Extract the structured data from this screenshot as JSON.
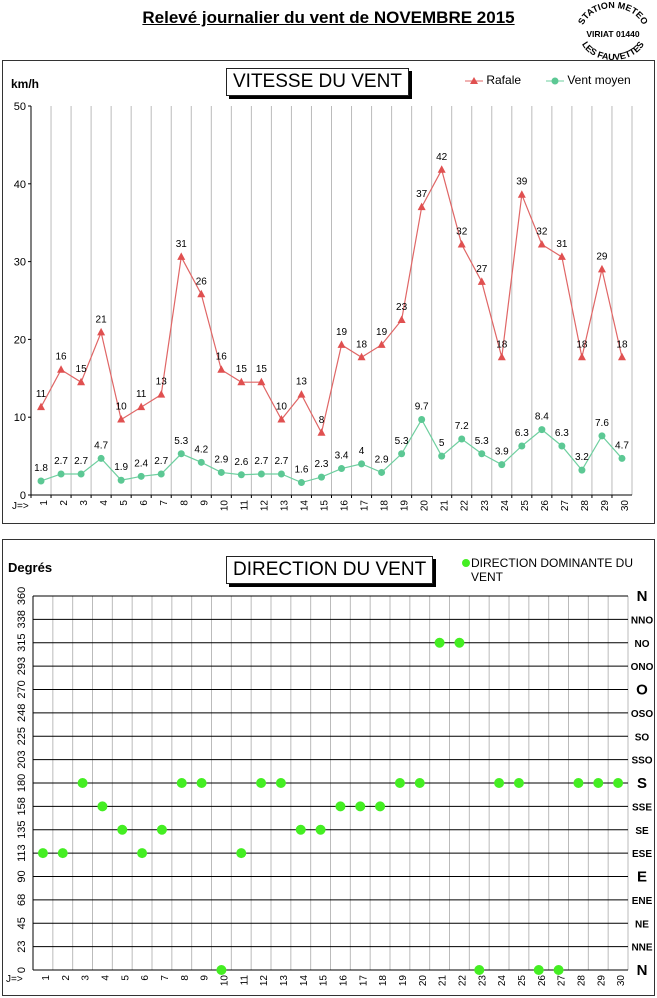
{
  "title": "Relevé journalier du vent de NOVEMBRE 2015",
  "stamp": {
    "line1": "STATION METEO",
    "line2": "VIRIAT 01440",
    "line3": "LES FAUVETTES"
  },
  "colors": {
    "rafale": "#e06666",
    "rafale_marker": "#e05050",
    "moyen": "#6ecf9f",
    "moyen_marker": "#5cc894",
    "direction": "#44ee22",
    "grid": "#000000",
    "vgrid": "#bbbbbb"
  },
  "chart_data": [
    {
      "type": "line",
      "title": "VITESSE DU VENT",
      "ylabel": "km/h",
      "xlabel": "",
      "x_prefix": "J=>",
      "x": [
        1,
        2,
        3,
        4,
        5,
        6,
        7,
        8,
        9,
        10,
        11,
        12,
        13,
        14,
        15,
        16,
        17,
        18,
        19,
        20,
        21,
        22,
        23,
        24,
        25,
        26,
        27,
        28,
        29,
        30
      ],
      "ylim": [
        0,
        50
      ],
      "yticks": [
        0,
        10,
        20,
        30,
        40,
        50
      ],
      "grid": true,
      "legend": "top-right",
      "series": [
        {
          "name": "Rafale",
          "marker": "triangle",
          "values": [
            11.3,
            16.1,
            14.5,
            20.9,
            9.7,
            11.3,
            12.9,
            30.6,
            25.8,
            16.1,
            14.5,
            14.5,
            9.7,
            12.9,
            8.0,
            19.3,
            17.7,
            19.3,
            22.5,
            37.0,
            41.8,
            32.2,
            27.4,
            17.7,
            38.6,
            32.2,
            30.6,
            17.7,
            29.0,
            17.7
          ],
          "labels": [
            "11",
            "16",
            "15",
            "21",
            "10",
            "11",
            "13",
            "31",
            "26",
            "16",
            "15",
            "15",
            "10",
            "13",
            "8",
            "19",
            "18",
            "19",
            "23",
            "37",
            "42",
            "32",
            "27",
            "18",
            "39",
            "32",
            "31",
            "18",
            "29",
            "18"
          ]
        },
        {
          "name": "Vent moyen",
          "marker": "circle",
          "values": [
            1.8,
            2.7,
            2.7,
            4.7,
            1.9,
            2.4,
            2.7,
            5.3,
            4.2,
            2.9,
            2.6,
            2.7,
            2.7,
            1.6,
            2.3,
            3.4,
            4,
            2.9,
            5.3,
            9.7,
            5,
            7.2,
            5.3,
            3.9,
            6.3,
            8.4,
            6.3,
            3.2,
            7.6,
            4.7
          ],
          "labels": [
            "1.8",
            "2.7",
            "2.7",
            "4.7",
            "1.9",
            "2.4",
            "2.7",
            "5.3",
            "4.2",
            "2.9",
            "2.6",
            "2.7",
            "2.7",
            "1.6",
            "2.3",
            "3.4",
            "4",
            "2.9",
            "5.3",
            "9.7",
            "5",
            "7.2",
            "5.3",
            "3.9",
            "6.3",
            "8.4",
            "6.3",
            "3.2",
            "7.6",
            "4.7"
          ]
        }
      ]
    },
    {
      "type": "scatter",
      "title": "DIRECTION DU VENT",
      "ylabel": "Degrés",
      "xlabel": "",
      "x_prefix": "J=>",
      "x": [
        1,
        2,
        3,
        4,
        5,
        6,
        7,
        8,
        9,
        10,
        11,
        12,
        13,
        14,
        15,
        16,
        17,
        18,
        19,
        20,
        21,
        22,
        23,
        24,
        25,
        26,
        27,
        28,
        29,
        30
      ],
      "ylim": [
        0,
        360
      ],
      "yticks": [
        0,
        23,
        45,
        68,
        90,
        113,
        135,
        158,
        180,
        203,
        225,
        248,
        270,
        293,
        315,
        338,
        360
      ],
      "ytick_values": [
        0,
        22.5,
        45,
        67.5,
        90,
        112.5,
        135,
        157.5,
        180,
        202.5,
        225,
        247.5,
        270,
        292.5,
        315,
        337.5,
        360
      ],
      "right_labels": [
        "N",
        "NNE",
        "NE",
        "ENE",
        "E",
        "ESE",
        "SE",
        "SSE",
        "S",
        "SSO",
        "SO",
        "OSO",
        "O",
        "ONO",
        "NO",
        "NNO",
        "N"
      ],
      "grid": true,
      "legend": "top-right",
      "series": [
        {
          "name": "DIRECTION DOMINANTE DU VENT",
          "values": [
            112.5,
            112.5,
            180,
            157.5,
            135,
            112.5,
            135,
            180,
            180,
            0,
            112.5,
            180,
            180,
            135,
            135,
            157.5,
            157.5,
            157.5,
            180,
            180,
            315,
            315,
            0,
            180,
            180,
            0,
            0,
            180,
            180,
            180
          ]
        }
      ]
    }
  ]
}
